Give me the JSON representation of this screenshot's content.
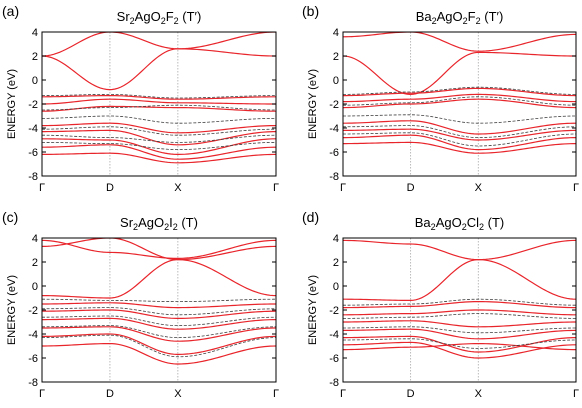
{
  "figure": {
    "k_labels": [
      "Γ",
      "D",
      "X",
      "Γ"
    ],
    "colors": {
      "red": "#e8252b",
      "dark": "#3f3f3f",
      "frame": "#000000",
      "vline": "#aaaaaa"
    }
  },
  "chart_data": [
    {
      "type": "line",
      "panel_label": "(a)",
      "title": {
        "formula": [
          "Sr",
          "2",
          "AgO",
          "2",
          "F",
          "2"
        ],
        "suffix": " (T′)"
      },
      "ylabel": "ENERGY (eV)",
      "ylim": [
        -8,
        4
      ],
      "yticks": [
        4,
        2,
        0,
        -2,
        -4,
        -6,
        -8
      ],
      "x": [
        "Γ",
        "D",
        "X",
        "Γ"
      ],
      "series": [
        {
          "color": "red",
          "style": "solid",
          "values": [
            2.0,
            -0.8,
            2.6,
            2.0
          ]
        },
        {
          "color": "red",
          "style": "solid",
          "values": [
            2.0,
            4.0,
            2.6,
            4.0
          ]
        },
        {
          "color": "red",
          "style": "solid",
          "values": [
            -1.4,
            -1.3,
            -1.6,
            -1.4
          ]
        },
        {
          "color": "red",
          "style": "solid",
          "values": [
            -2.0,
            -1.6,
            -1.9,
            -2.0
          ]
        },
        {
          "color": "red",
          "style": "solid",
          "values": [
            -2.6,
            -2.2,
            -2.3,
            -2.6
          ]
        },
        {
          "color": "red",
          "style": "solid",
          "values": [
            -3.8,
            -3.6,
            -4.4,
            -3.8
          ]
        },
        {
          "color": "red",
          "style": "solid",
          "values": [
            -4.3,
            -4.2,
            -5.4,
            -4.3
          ]
        },
        {
          "color": "red",
          "style": "solid",
          "values": [
            -4.9,
            -5.0,
            -6.2,
            -4.9
          ]
        },
        {
          "color": "red",
          "style": "solid",
          "values": [
            -5.6,
            -5.4,
            -6.6,
            -5.6
          ]
        },
        {
          "color": "red",
          "style": "solid",
          "values": [
            -6.2,
            -6.1,
            -6.9,
            -6.2
          ]
        },
        {
          "color": "dark",
          "style": "dashed",
          "values": [
            -1.3,
            -1.2,
            -1.5,
            -1.3
          ]
        },
        {
          "color": "dark",
          "style": "dashed",
          "values": [
            -2.5,
            -2.3,
            -2.1,
            -2.5
          ]
        },
        {
          "color": "dark",
          "style": "dashed",
          "values": [
            -3.2,
            -3.0,
            -3.6,
            -3.2
          ]
        },
        {
          "color": "dark",
          "style": "dashed",
          "values": [
            -4.1,
            -3.9,
            -4.6,
            -4.1
          ]
        },
        {
          "color": "dark",
          "style": "dashed",
          "values": [
            -4.6,
            -4.8,
            -5.2,
            -4.6
          ]
        },
        {
          "color": "dark",
          "style": "dashed",
          "values": [
            -5.2,
            -5.3,
            -5.8,
            -5.2
          ]
        }
      ]
    },
    {
      "type": "line",
      "panel_label": "(b)",
      "title": {
        "formula": [
          "Ba",
          "2",
          "AgO",
          "2",
          "F",
          "2"
        ],
        "suffix": " (T′)"
      },
      "ylabel": "ENERGY (eV)",
      "ylim": [
        -8,
        4
      ],
      "yticks": [
        4,
        2,
        0,
        -2,
        -4,
        -6,
        -8
      ],
      "x": [
        "Γ",
        "D",
        "X",
        "Γ"
      ],
      "series": [
        {
          "color": "red",
          "style": "solid",
          "values": [
            2.0,
            -1.2,
            2.3,
            2.0
          ]
        },
        {
          "color": "red",
          "style": "solid",
          "values": [
            3.6,
            4.0,
            2.4,
            3.8
          ]
        },
        {
          "color": "red",
          "style": "solid",
          "values": [
            -1.3,
            -1.1,
            -0.7,
            -1.3
          ]
        },
        {
          "color": "red",
          "style": "solid",
          "values": [
            -1.8,
            -1.6,
            -1.2,
            -1.8
          ]
        },
        {
          "color": "red",
          "style": "solid",
          "values": [
            -2.3,
            -2.0,
            -1.6,
            -2.3
          ]
        },
        {
          "color": "red",
          "style": "solid",
          "values": [
            -3.6,
            -3.4,
            -4.5,
            -3.6
          ]
        },
        {
          "color": "red",
          "style": "solid",
          "values": [
            -4.2,
            -4.1,
            -5.0,
            -4.2
          ]
        },
        {
          "color": "red",
          "style": "solid",
          "values": [
            -4.8,
            -4.6,
            -5.8,
            -4.8
          ]
        },
        {
          "color": "red",
          "style": "solid",
          "values": [
            -5.3,
            -5.2,
            -6.1,
            -5.3
          ]
        },
        {
          "color": "dark",
          "style": "dashed",
          "values": [
            -1.2,
            -1.0,
            -0.6,
            -1.2
          ]
        },
        {
          "color": "dark",
          "style": "dashed",
          "values": [
            -2.1,
            -1.9,
            -1.4,
            -2.1
          ]
        },
        {
          "color": "dark",
          "style": "dashed",
          "values": [
            -3.0,
            -2.9,
            -3.6,
            -3.0
          ]
        },
        {
          "color": "dark",
          "style": "dashed",
          "values": [
            -3.9,
            -3.8,
            -4.8,
            -3.9
          ]
        },
        {
          "color": "dark",
          "style": "dashed",
          "values": [
            -4.5,
            -4.4,
            -5.5,
            -4.5
          ]
        }
      ]
    },
    {
      "type": "line",
      "panel_label": "(c)",
      "title": {
        "formula": [
          "Sr",
          "2",
          "AgO",
          "2",
          "I",
          "2"
        ],
        "suffix": " (T)"
      },
      "ylabel": "ENERGY (eV)",
      "ylim": [
        -8,
        4
      ],
      "yticks": [
        4,
        2,
        0,
        -2,
        -4,
        -6,
        -8
      ],
      "x": [
        "Γ",
        "D",
        "X",
        "Γ"
      ],
      "series": [
        {
          "color": "red",
          "style": "solid",
          "values": [
            3.8,
            2.8,
            2.3,
            3.8
          ]
        },
        {
          "color": "red",
          "style": "solid",
          "values": [
            3.3,
            4.0,
            2.2,
            3.3
          ]
        },
        {
          "color": "red",
          "style": "solid",
          "values": [
            -0.8,
            -1.0,
            2.2,
            -0.8
          ]
        },
        {
          "color": "red",
          "style": "solid",
          "values": [
            -1.5,
            -1.4,
            -1.8,
            -1.5
          ]
        },
        {
          "color": "red",
          "style": "solid",
          "values": [
            -2.1,
            -2.0,
            -2.7,
            -2.1
          ]
        },
        {
          "color": "red",
          "style": "solid",
          "values": [
            -2.8,
            -2.7,
            -3.6,
            -2.8
          ]
        },
        {
          "color": "red",
          "style": "solid",
          "values": [
            -3.5,
            -3.4,
            -4.6,
            -3.5
          ]
        },
        {
          "color": "red",
          "style": "solid",
          "values": [
            -4.2,
            -4.0,
            -5.7,
            -4.2
          ]
        },
        {
          "color": "red",
          "style": "solid",
          "values": [
            -5.0,
            -4.8,
            -6.5,
            -5.0
          ]
        },
        {
          "color": "dark",
          "style": "dashed",
          "values": [
            -1.1,
            -1.2,
            -1.3,
            -1.1
          ]
        },
        {
          "color": "dark",
          "style": "dashed",
          "values": [
            -1.9,
            -1.8,
            -2.4,
            -1.9
          ]
        },
        {
          "color": "dark",
          "style": "dashed",
          "values": [
            -2.6,
            -2.5,
            -3.3,
            -2.6
          ]
        },
        {
          "color": "dark",
          "style": "dashed",
          "values": [
            -3.4,
            -3.3,
            -4.3,
            -3.4
          ]
        },
        {
          "color": "dark",
          "style": "dashed",
          "values": [
            -4.3,
            -4.1,
            -5.9,
            -4.3
          ]
        }
      ]
    },
    {
      "type": "line",
      "panel_label": "(d)",
      "title": {
        "formula": [
          "Ba",
          "2",
          "AgO",
          "2",
          "Cl",
          "2"
        ],
        "suffix": " (T)"
      },
      "ylabel": "ENERGY (eV)",
      "ylim": [
        -8,
        4
      ],
      "yticks": [
        4,
        2,
        0,
        -2,
        -4,
        -6,
        -8
      ],
      "x": [
        "Γ",
        "D",
        "X",
        "Γ"
      ],
      "series": [
        {
          "color": "red",
          "style": "solid",
          "values": [
            3.8,
            3.5,
            2.2,
            3.8
          ]
        },
        {
          "color": "red",
          "style": "solid",
          "values": [
            -1.1,
            -1.2,
            2.2,
            -1.1
          ]
        },
        {
          "color": "red",
          "style": "solid",
          "values": [
            -1.8,
            -1.7,
            -1.3,
            -1.8
          ]
        },
        {
          "color": "red",
          "style": "solid",
          "values": [
            -2.4,
            -2.3,
            -2.0,
            -2.4
          ]
        },
        {
          "color": "red",
          "style": "solid",
          "values": [
            -3.0,
            -2.9,
            -3.4,
            -3.0
          ]
        },
        {
          "color": "red",
          "style": "solid",
          "values": [
            -3.7,
            -3.6,
            -4.4,
            -3.7
          ]
        },
        {
          "color": "red",
          "style": "solid",
          "values": [
            -4.3,
            -4.2,
            -5.5,
            -4.3
          ]
        },
        {
          "color": "red",
          "style": "solid",
          "values": [
            -4.9,
            -4.7,
            -6.0,
            -4.9
          ]
        },
        {
          "color": "red",
          "style": "solid",
          "values": [
            -5.3,
            -5.1,
            -4.8,
            -5.3
          ]
        },
        {
          "color": "dark",
          "style": "dashed",
          "values": [
            -1.6,
            -1.5,
            -1.1,
            -1.6
          ]
        },
        {
          "color": "dark",
          "style": "dashed",
          "values": [
            -2.7,
            -2.6,
            -2.3,
            -2.7
          ]
        },
        {
          "color": "dark",
          "style": "dashed",
          "values": [
            -3.5,
            -3.4,
            -3.9,
            -3.5
          ]
        },
        {
          "color": "dark",
          "style": "dashed",
          "values": [
            -4.5,
            -4.4,
            -5.2,
            -4.5
          ]
        }
      ]
    }
  ]
}
